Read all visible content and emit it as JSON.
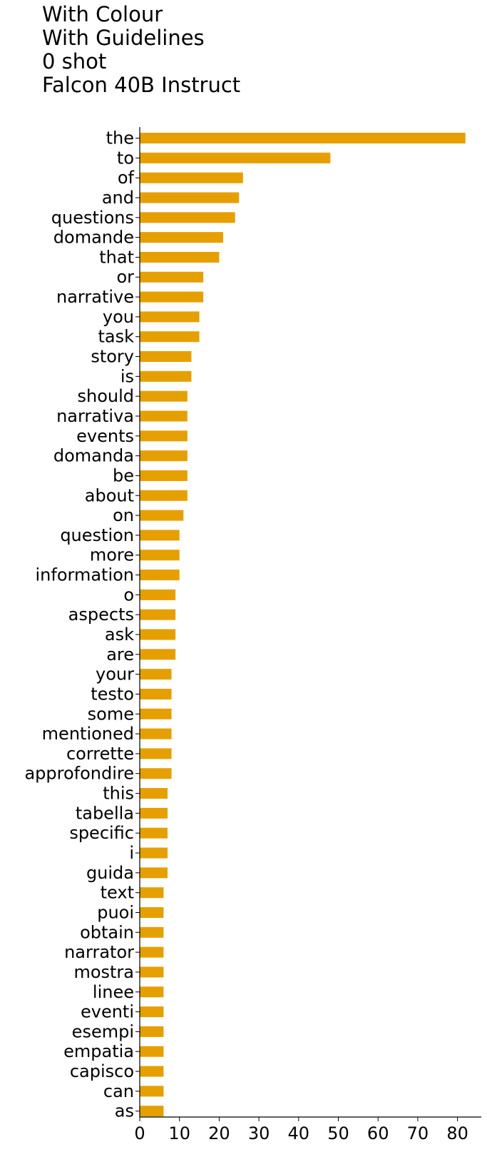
{
  "title_lines": [
    "With Colour",
    "With Guidelines",
    "0 shot",
    "Falcon 40B Instruct"
  ],
  "chart_data": {
    "type": "bar",
    "orientation": "horizontal",
    "bar_color": "#E69F00",
    "categories": [
      "the",
      "to",
      "of",
      "and",
      "questions",
      "domande",
      "that",
      "or",
      "narrative",
      "you",
      "task",
      "story",
      "is",
      "should",
      "narrativa",
      "events",
      "domanda",
      "be",
      "about",
      "on",
      "question",
      "more",
      "information",
      "o",
      "aspects",
      "ask",
      "are",
      "your",
      "testo",
      "some",
      "mentioned",
      "corrette",
      "approfondire",
      "this",
      "tabella",
      "specific",
      "i",
      "guida",
      "text",
      "puoi",
      "obtain",
      "narrator",
      "mostra",
      "linee",
      "eventi",
      "esempi",
      "empatia",
      "capisco",
      "can",
      "as"
    ],
    "values": [
      82,
      48,
      26,
      25,
      24,
      21,
      20,
      16,
      16,
      15,
      15,
      13,
      13,
      12,
      12,
      12,
      12,
      12,
      12,
      11,
      10,
      10,
      10,
      9,
      9,
      9,
      9,
      8,
      8,
      8,
      8,
      8,
      8,
      7,
      7,
      7,
      7,
      7,
      6,
      6,
      6,
      6,
      6,
      6,
      6,
      6,
      6,
      6,
      6,
      6
    ],
    "xlim": [
      0,
      86
    ],
    "xticks": [
      0,
      10,
      20,
      30,
      40,
      50,
      60,
      70,
      80
    ],
    "xtick_labels": [
      "0",
      "10",
      "20",
      "30",
      "40",
      "50",
      "60",
      "70",
      "80"
    ],
    "grid": false,
    "legend": false
  }
}
